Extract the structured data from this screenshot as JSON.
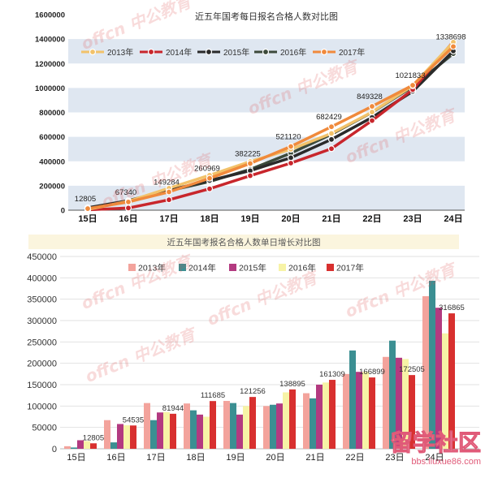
{
  "watermark": {
    "text": "offcn 中公教育",
    "color": "#e0504f"
  },
  "site_logo": {
    "text": "留学社区",
    "url_text": "bbs.liuxue86.com",
    "color": "#e05a78"
  },
  "chart_data": [
    {
      "type": "line",
      "title": "近五年国考每日报名合格人数对比图",
      "categories": [
        "15日",
        "16日",
        "17日",
        "18日",
        "19日",
        "20日",
        "21日",
        "22日",
        "23日",
        "24日"
      ],
      "ylim": [
        0,
        1600000
      ],
      "yticks": [
        0,
        200000,
        400000,
        600000,
        800000,
        1000000,
        1200000,
        1400000,
        1600000
      ],
      "grid": false,
      "band_color": "#dfe7f1",
      "legend_position": "top",
      "series": [
        {
          "name": "2013年",
          "color": "#f2c26a",
          "values": [
            6000,
            73000,
            180000,
            286000,
            398000,
            498000,
            628000,
            803000,
            1018000,
            1375000
          ]
        },
        {
          "name": "2014年",
          "color": "#c8262c",
          "values": [
            3000,
            18000,
            85000,
            175000,
            282000,
            385000,
            503000,
            733000,
            986000,
            1379000
          ]
        },
        {
          "name": "2015年",
          "color": "#2a2a2a",
          "values": [
            20000,
            78000,
            163000,
            243000,
            323000,
            429000,
            579000,
            759000,
            972000,
            1302000
          ]
        },
        {
          "name": "2016年",
          "color": "#3c4a3b",
          "values": [
            18000,
            73000,
            159000,
            234000,
            334000,
            466000,
            621000,
            801000,
            1011000,
            1281000
          ]
        },
        {
          "name": "2017年",
          "color": "#f08a3c",
          "values": [
            12805,
            67340,
            149284,
            260969,
            382225,
            521120,
            682429,
            849328,
            1021833,
            1338698
          ],
          "data_labels": true
        }
      ]
    },
    {
      "type": "bar",
      "title": "近五年国考报名合格人数单日增长对比图",
      "categories": [
        "15日",
        "16日",
        "17日",
        "18日",
        "19日",
        "20日",
        "21日",
        "22日",
        "23日",
        "24日"
      ],
      "ylim": [
        0,
        450000
      ],
      "yticks": [
        0,
        50000,
        100000,
        150000,
        200000,
        250000,
        300000,
        350000,
        400000,
        450000
      ],
      "grid": true,
      "title_band_color": "#fbf5de",
      "legend_position": "top",
      "series": [
        {
          "name": "2013年",
          "color": "#f3a39c",
          "values": [
            6000,
            67000,
            107000,
            106000,
            112000,
            100000,
            130000,
            175000,
            215000,
            357000
          ]
        },
        {
          "name": "2014年",
          "color": "#3b8f92",
          "values": [
            3000,
            15000,
            67000,
            90000,
            107000,
            103000,
            118000,
            230000,
            253000,
            393000
          ]
        },
        {
          "name": "2015年",
          "color": "#b33a80",
          "values": [
            20000,
            58000,
            85000,
            80000,
            80000,
            106000,
            150000,
            180000,
            213000,
            330000
          ]
        },
        {
          "name": "2016年",
          "color": "#f7f3a6",
          "values": [
            18000,
            55000,
            86000,
            75000,
            100000,
            132000,
            155000,
            180000,
            210000,
            270000
          ]
        },
        {
          "name": "2017年",
          "color": "#d8302f",
          "values": [
            12805,
            54535,
            81944,
            111685,
            121256,
            138895,
            161309,
            166899,
            172505,
            316865
          ],
          "data_labels": true
        }
      ]
    }
  ]
}
